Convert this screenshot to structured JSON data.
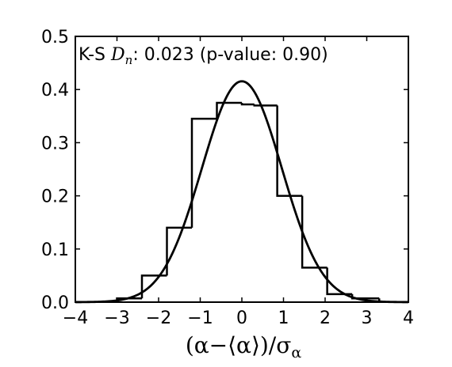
{
  "chart_data": {
    "type": "bar",
    "subtype": "histogram-with-normal-fit",
    "title": "",
    "annotation": {
      "prefix": "K-S ",
      "stat_symbol": "D",
      "stat_subscript": "n",
      "suffix": ": 0.023 (p-value: 0.90)"
    },
    "xlabel": "(α−⟨α⟩)/σ",
    "xlabel_subscript": "α",
    "ylabel": "",
    "xlim": [
      -4,
      4
    ],
    "ylim": [
      0,
      0.5
    ],
    "x_ticks": [
      -4,
      -3,
      -2,
      -1,
      0,
      1,
      2,
      3,
      4
    ],
    "x_tick_labels": [
      "−4",
      "−3",
      "−2",
      "−1",
      "0",
      "1",
      "2",
      "3",
      "4"
    ],
    "y_ticks": [
      0,
      0.1,
      0.2,
      0.3,
      0.4,
      0.5
    ],
    "y_tick_labels": [
      "0.0",
      "0.1",
      "0.2",
      "0.3",
      "0.4",
      "0.5"
    ],
    "grid": false,
    "series": [
      {
        "type": "step-histogram",
        "bin_edges": [
          -3.0,
          -2.4,
          -1.8,
          -1.2,
          -0.6,
          0.0,
          0.3,
          0.85,
          1.45,
          2.05,
          2.65,
          3.3
        ],
        "values": [
          0.007,
          0.05,
          0.14,
          0.345,
          0.375,
          0.372,
          0.37,
          0.2,
          0.065,
          0.015,
          0.007
        ],
        "color": "#000000"
      },
      {
        "type": "line",
        "curve": "normal-pdf",
        "mean": 0,
        "sigma": 0.96,
        "x_range": [
          -4,
          4
        ],
        "color": "#000000"
      }
    ]
  }
}
